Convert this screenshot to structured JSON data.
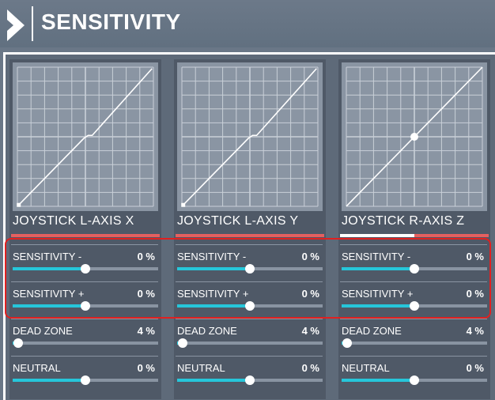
{
  "header": {
    "title": "SENSITIVITY",
    "logo_icon": "chevron-right-icon"
  },
  "panels": [
    {
      "axis_label": "JOYSTICK L-AXIS X",
      "curve": "split",
      "bar_fill": 0.0,
      "rows": [
        {
          "label": "SENSITIVITY -",
          "value": "0 %",
          "level": 0.5
        },
        {
          "label": "SENSITIVITY +",
          "value": "0 %",
          "level": 0.5
        },
        {
          "label": "DEAD ZONE",
          "value": "4 %",
          "level": 0.04
        },
        {
          "label": "NEUTRAL",
          "value": "0 %",
          "level": 0.5
        }
      ]
    },
    {
      "axis_label": "JOYSTICK L-AXIS Y",
      "curve": "split",
      "bar_fill": 0.0,
      "rows": [
        {
          "label": "SENSITIVITY -",
          "value": "0 %",
          "level": 0.5
        },
        {
          "label": "SENSITIVITY +",
          "value": "0 %",
          "level": 0.5
        },
        {
          "label": "DEAD ZONE",
          "value": "4 %",
          "level": 0.04
        },
        {
          "label": "NEUTRAL",
          "value": "0 %",
          "level": 0.5
        }
      ]
    },
    {
      "axis_label": "JOYSTICK R-AXIS Z",
      "curve": "centered",
      "bar_fill": 0.5,
      "rows": [
        {
          "label": "SENSITIVITY -",
          "value": "0 %",
          "level": 0.5
        },
        {
          "label": "SENSITIVITY +",
          "value": "0 %",
          "level": 0.5
        },
        {
          "label": "DEAD ZONE",
          "value": "4 %",
          "level": 0.04
        },
        {
          "label": "NEUTRAL",
          "value": "0 %",
          "level": 0.5
        }
      ]
    }
  ],
  "colors": {
    "accent": "#26c6da",
    "highlight": "#e02020",
    "bar_track": "#e46060"
  }
}
